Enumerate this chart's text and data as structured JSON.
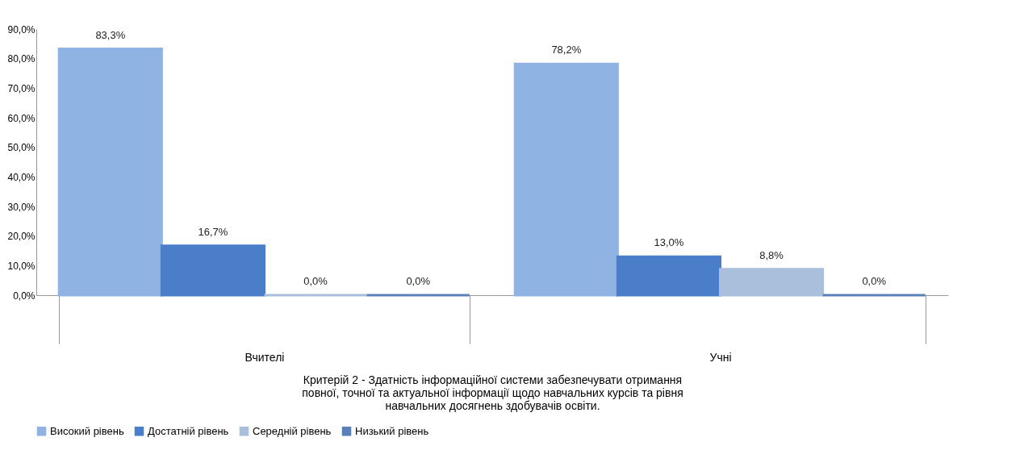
{
  "chart_data": {
    "type": "bar",
    "xlabel": "Критерій 2 - Здатність інформаційної системи забезпечувати отримання повної, точної та актуальної інформації щодо навчальних курсів та рівня навчальних досягнень здобувачів освіти.",
    "categories": [
      "Вчителі",
      "Учні"
    ],
    "series": [
      {
        "name": "Високий рівень",
        "color": "#8fb4e3",
        "values": [
          83.3,
          78.2
        ],
        "value_labels": [
          "83,3%",
          "78,2%"
        ]
      },
      {
        "name": "Достатній рівень",
        "color": "#4a7ec9",
        "values": [
          16.7,
          13.0
        ],
        "value_labels": [
          "16,7%",
          "13,0%"
        ]
      },
      {
        "name": "Середній рівень",
        "color": "#a9bfdc",
        "values": [
          0,
          8.8
        ],
        "value_labels": [
          "0,0%",
          "8,8%"
        ]
      },
      {
        "name": "Низький рівень",
        "color": "#5a80b8",
        "values": [
          0,
          0
        ],
        "value_labels": [
          "0,0%",
          "0,0%"
        ]
      }
    ],
    "ylim": [
      0,
      90
    ],
    "yticks": [
      {
        "value": 0,
        "label": "0,0%"
      },
      {
        "value": 10,
        "label": "10,0%"
      },
      {
        "value": 20,
        "label": "20,0%"
      },
      {
        "value": 30,
        "label": "30,0%"
      },
      {
        "value": 40,
        "label": "40,0%"
      },
      {
        "value": 50,
        "label": "50,0%"
      },
      {
        "value": 60,
        "label": "60,0%"
      },
      {
        "value": 70,
        "label": "70,0%"
      },
      {
        "value": 80,
        "label": "80,0%"
      },
      {
        "value": 90,
        "label": "90,0%"
      }
    ],
    "grid": false,
    "legend": "bottom"
  }
}
